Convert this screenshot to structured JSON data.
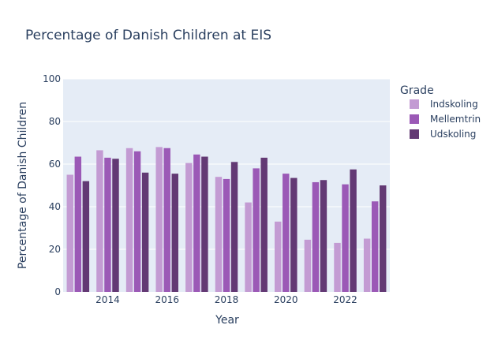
{
  "chart_data": {
    "type": "bar",
    "title": "Percentage of Danish Children at EIS",
    "xlabel": "Year",
    "ylabel": "Percentage of Danish Children",
    "ylim": [
      0,
      100
    ],
    "y_ticks": [
      "0",
      "20",
      "40",
      "60",
      "80",
      "100"
    ],
    "x_ticks": [
      "2014",
      "2016",
      "2018",
      "2020",
      "2022"
    ],
    "categories": [
      2013,
      2014,
      2015,
      2016,
      2017,
      2018,
      2019,
      2020,
      2021,
      2022,
      2023
    ],
    "legend_title": "Grade",
    "legend_position": "right",
    "grid": true,
    "background": "#e5ecf6",
    "series": [
      {
        "name": "Indskoling",
        "color": "#c39bd3",
        "values": [
          55,
          66.5,
          67.5,
          68,
          60.5,
          54,
          42,
          33,
          24.5,
          23,
          25
        ]
      },
      {
        "name": "Mellemtrin",
        "color": "#9b59b6",
        "values": [
          63.5,
          63,
          66,
          67.5,
          64.5,
          53,
          58,
          55.5,
          51.5,
          50.5,
          42.5
        ]
      },
      {
        "name": "Udskoling",
        "color": "#633974",
        "values": [
          52,
          62.5,
          56,
          55.5,
          63.5,
          61,
          63,
          53.5,
          52.5,
          57.5,
          50
        ]
      }
    ]
  }
}
